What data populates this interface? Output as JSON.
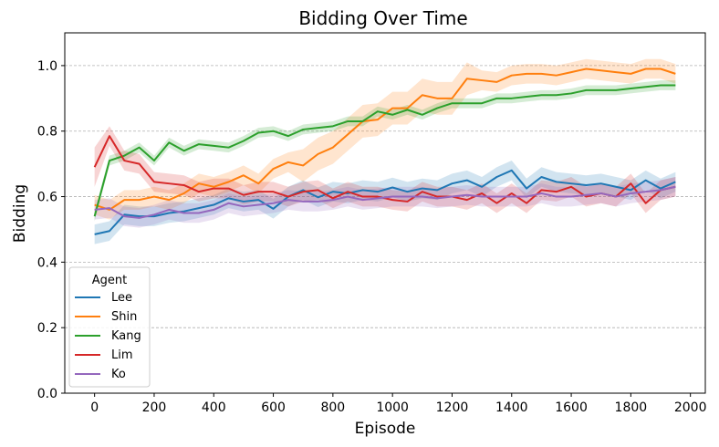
{
  "chart_data": {
    "type": "line",
    "title": "Bidding Over Time",
    "xlabel": "Episode",
    "ylabel": "Bidding",
    "xlim": [
      -100,
      2050
    ],
    "ylim": [
      0.0,
      1.1
    ],
    "xticks": [
      0,
      200,
      400,
      600,
      800,
      1000,
      1200,
      1400,
      1600,
      1800,
      2000
    ],
    "yticks": [
      0.0,
      0.2,
      0.4,
      0.6,
      0.8,
      1.0
    ],
    "grid": "horizontal dashed",
    "legend": {
      "title": "Agent",
      "placement": "lower-left"
    },
    "x": [
      0,
      50,
      100,
      150,
      200,
      250,
      300,
      350,
      400,
      450,
      500,
      550,
      600,
      650,
      700,
      750,
      800,
      850,
      900,
      950,
      1000,
      1050,
      1100,
      1150,
      1200,
      1250,
      1300,
      1350,
      1400,
      1450,
      1500,
      1550,
      1600,
      1650,
      1700,
      1750,
      1800,
      1850,
      1900,
      1950
    ],
    "series": [
      {
        "name": "Lee",
        "color": "#1f77b4",
        "values": [
          0.485,
          0.495,
          0.545,
          0.54,
          0.54,
          0.55,
          0.555,
          0.565,
          0.575,
          0.595,
          0.585,
          0.59,
          0.563,
          0.6,
          0.62,
          0.598,
          0.615,
          0.61,
          0.62,
          0.615,
          0.628,
          0.615,
          0.625,
          0.62,
          0.64,
          0.65,
          0.63,
          0.66,
          0.68,
          0.625,
          0.66,
          0.645,
          0.64,
          0.635,
          0.64,
          0.63,
          0.62,
          0.65,
          0.625,
          0.645
        ],
        "band": [
          0.03,
          0.03,
          0.03,
          0.03,
          0.03,
          0.03,
          0.03,
          0.03,
          0.03,
          0.03,
          0.03,
          0.03,
          0.03,
          0.03,
          0.03,
          0.03,
          0.03,
          0.03,
          0.03,
          0.03,
          0.03,
          0.03,
          0.03,
          0.03,
          0.03,
          0.03,
          0.03,
          0.03,
          0.03,
          0.03,
          0.03,
          0.03,
          0.03,
          0.03,
          0.03,
          0.03,
          0.03,
          0.03,
          0.03,
          0.03
        ]
      },
      {
        "name": "Shin",
        "color": "#ff7f0e",
        "values": [
          0.575,
          0.56,
          0.59,
          0.59,
          0.6,
          0.59,
          0.61,
          0.64,
          0.63,
          0.645,
          0.665,
          0.64,
          0.685,
          0.705,
          0.695,
          0.73,
          0.75,
          0.79,
          0.83,
          0.835,
          0.87,
          0.87,
          0.91,
          0.9,
          0.9,
          0.96,
          0.955,
          0.95,
          0.97,
          0.975,
          0.975,
          0.97,
          0.98,
          0.99,
          0.985,
          0.98,
          0.975,
          0.99,
          0.99,
          0.975
        ],
        "band": [
          0.03,
          0.03,
          0.03,
          0.03,
          0.03,
          0.03,
          0.03,
          0.03,
          0.03,
          0.03,
          0.03,
          0.03,
          0.03,
          0.03,
          0.05,
          0.05,
          0.05,
          0.05,
          0.05,
          0.05,
          0.05,
          0.05,
          0.05,
          0.05,
          0.05,
          0.05,
          0.03,
          0.03,
          0.03,
          0.03,
          0.03,
          0.03,
          0.03,
          0.03,
          0.03,
          0.03,
          0.03,
          0.03,
          0.03,
          0.03
        ]
      },
      {
        "name": "Kang",
        "color": "#2ca02c",
        "values": [
          0.54,
          0.71,
          0.725,
          0.75,
          0.71,
          0.765,
          0.74,
          0.76,
          0.755,
          0.75,
          0.77,
          0.795,
          0.8,
          0.785,
          0.805,
          0.81,
          0.815,
          0.83,
          0.83,
          0.86,
          0.85,
          0.865,
          0.85,
          0.87,
          0.885,
          0.885,
          0.885,
          0.9,
          0.9,
          0.905,
          0.91,
          0.91,
          0.915,
          0.925,
          0.925,
          0.925,
          0.93,
          0.935,
          0.94,
          0.94
        ],
        "band": [
          0.015,
          0.015,
          0.015,
          0.015,
          0.015,
          0.015,
          0.015,
          0.015,
          0.015,
          0.015,
          0.015,
          0.015,
          0.015,
          0.015,
          0.015,
          0.015,
          0.015,
          0.015,
          0.015,
          0.015,
          0.015,
          0.015,
          0.015,
          0.015,
          0.015,
          0.015,
          0.015,
          0.015,
          0.015,
          0.015,
          0.015,
          0.015,
          0.015,
          0.015,
          0.015,
          0.015,
          0.015,
          0.015,
          0.015,
          0.015
        ]
      },
      {
        "name": "Lim",
        "color": "#d62728",
        "values": [
          0.69,
          0.785,
          0.71,
          0.7,
          0.645,
          0.64,
          0.635,
          0.615,
          0.625,
          0.625,
          0.605,
          0.615,
          0.615,
          0.6,
          0.615,
          0.62,
          0.595,
          0.615,
          0.6,
          0.6,
          0.59,
          0.585,
          0.615,
          0.6,
          0.6,
          0.59,
          0.61,
          0.58,
          0.61,
          0.58,
          0.62,
          0.615,
          0.63,
          0.6,
          0.61,
          0.6,
          0.64,
          0.58,
          0.62,
          0.63
        ],
        "band": [
          0.06,
          0.03,
          0.03,
          0.03,
          0.03,
          0.03,
          0.03,
          0.03,
          0.03,
          0.03,
          0.03,
          0.03,
          0.03,
          0.03,
          0.03,
          0.03,
          0.03,
          0.03,
          0.03,
          0.03,
          0.03,
          0.03,
          0.03,
          0.03,
          0.03,
          0.03,
          0.03,
          0.03,
          0.03,
          0.03,
          0.03,
          0.03,
          0.03,
          0.03,
          0.03,
          0.03,
          0.03,
          0.03,
          0.03,
          0.03
        ]
      },
      {
        "name": "Ko",
        "color": "#9467bd",
        "values": [
          0.56,
          0.565,
          0.54,
          0.535,
          0.545,
          0.56,
          0.55,
          0.55,
          0.56,
          0.58,
          0.57,
          0.575,
          0.58,
          0.59,
          0.585,
          0.585,
          0.59,
          0.6,
          0.59,
          0.595,
          0.6,
          0.6,
          0.6,
          0.595,
          0.6,
          0.605,
          0.6,
          0.6,
          0.6,
          0.6,
          0.61,
          0.6,
          0.6,
          0.605,
          0.61,
          0.6,
          0.61,
          0.615,
          0.62,
          0.63
        ],
        "band": [
          0.03,
          0.03,
          0.03,
          0.03,
          0.03,
          0.03,
          0.03,
          0.03,
          0.03,
          0.03,
          0.03,
          0.03,
          0.03,
          0.03,
          0.03,
          0.03,
          0.03,
          0.03,
          0.03,
          0.03,
          0.03,
          0.03,
          0.03,
          0.03,
          0.03,
          0.03,
          0.03,
          0.03,
          0.03,
          0.03,
          0.03,
          0.03,
          0.03,
          0.03,
          0.03,
          0.03,
          0.03,
          0.03,
          0.03,
          0.03
        ]
      }
    ]
  }
}
